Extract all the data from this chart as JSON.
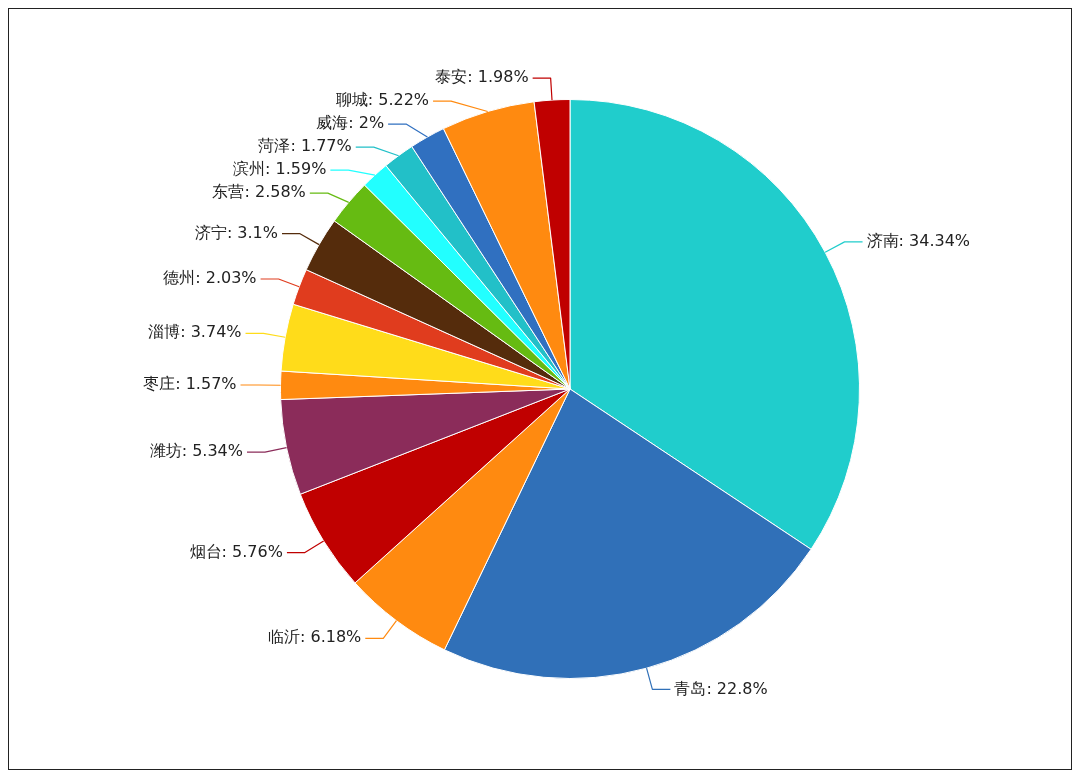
{
  "chart_data": {
    "type": "pie",
    "categories": [
      "济南",
      "青岛",
      "临沂",
      "烟台",
      "潍坊",
      "枣庄",
      "淄博",
      "德州",
      "济宁",
      "东营",
      "滨州",
      "菏泽",
      "威海",
      "聊城",
      "泰安"
    ],
    "values": [
      34.34,
      22.8,
      6.18,
      5.76,
      5.34,
      1.57,
      3.74,
      2.03,
      3.1,
      2.58,
      1.59,
      1.77,
      2,
      5.22,
      1.98
    ],
    "value_labels": [
      "34.34%",
      "22.8%",
      "6.18%",
      "5.76%",
      "5.34%",
      "1.57%",
      "3.74%",
      "2.03%",
      "3.1%",
      "2.58%",
      "1.59%",
      "1.77%",
      "2%",
      "5.22%",
      "1.98%"
    ],
    "colors": [
      "#20cdcc",
      "#3070b8",
      "#ff8a10",
      "#c00000",
      "#8b2c5a",
      "#ff8a10",
      "#ffdc1a",
      "#e03c1e",
      "#552c0c",
      "#66bb12",
      "#22ffff",
      "#22c0c8",
      "#3070c0",
      "#ff8a10",
      "#c00000"
    ],
    "legend": false
  }
}
